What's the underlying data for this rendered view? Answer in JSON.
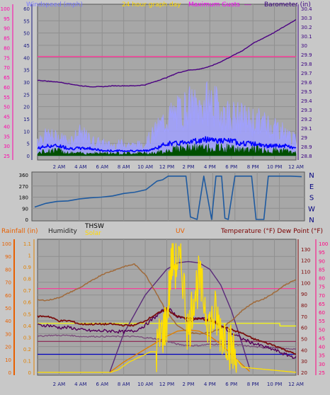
{
  "colors": {
    "background": "#c8c8c8",
    "plot_bg": "#a7a7a7",
    "grid": "#8f8f8f",
    "frame": "#555555"
  },
  "chart_data": [
    {
      "id": "top",
      "type": "line",
      "title": "24 hour graph day",
      "x_tick_labels": [
        "2 AM",
        "4 AM",
        "6 AM",
        "8 AM",
        "10 AM",
        "12 PM",
        "2 PM",
        "4 PM",
        "6 PM",
        "8 PM",
        "10 PM",
        "12 AM"
      ],
      "header_labels": [
        {
          "text": "Windspeed (mph)",
          "color": "#7b7bff"
        },
        {
          "text": "24 hour graph day",
          "color": "#ffd800"
        },
        {
          "text": "Maximum Gusts",
          "color": "#ff00ff"
        },
        {
          "text": "---",
          "color": "#ff00ff"
        },
        {
          "text": "Barometer (in)",
          "color": "#3a0080"
        }
      ],
      "left_axis": {
        "label": "Windspeed (mph)",
        "ticks": [
          "0",
          "5",
          "10",
          "15",
          "20",
          "25",
          "30",
          "35",
          "40",
          "45",
          "50",
          "55",
          "60"
        ],
        "color": "#1a1a80"
      },
      "outer_left_axis": {
        "ticks": [
          "25",
          "30",
          "35",
          "40",
          "45",
          "50",
          "55",
          "60",
          "65",
          "70",
          "75",
          "80",
          "85",
          "90",
          "95",
          "100"
        ],
        "color": "#ff00aa"
      },
      "right_axis": {
        "label": "Barometer (in)",
        "ticks": [
          "28.8",
          "28.9",
          "29",
          "29.1",
          "29.2",
          "29.3",
          "29.4",
          "29.5",
          "29.6",
          "29.7",
          "29.8",
          "29.9",
          "30",
          "30.1",
          "30.2",
          "30.3",
          "30.4"
        ],
        "color": "#3a0080"
      },
      "series": [
        {
          "name": "Barometer (in)",
          "color": "#4b0082",
          "axis": "right",
          "x": [
            0,
            1,
            2,
            3,
            4,
            5,
            6,
            7,
            8,
            9,
            10,
            11,
            12,
            13,
            14,
            15,
            16,
            17,
            18,
            19,
            20,
            21,
            22,
            23,
            24
          ],
          "values": [
            29.62,
            29.61,
            29.6,
            29.58,
            29.56,
            29.55,
            29.55,
            29.56,
            29.56,
            29.56,
            29.57,
            29.61,
            29.65,
            29.7,
            29.73,
            29.74,
            29.77,
            29.82,
            29.88,
            29.94,
            30.02,
            30.08,
            30.14,
            30.21,
            30.28
          ]
        },
        {
          "name": "Maximum Gusts",
          "color": "#ff3399",
          "axis": "outer_left",
          "x": [
            0,
            24
          ],
          "values": [
            75.5,
            75.5
          ]
        },
        {
          "name": "Wind gusts",
          "color": "#a0a0ff",
          "axis": "left",
          "x": [
            0,
            1,
            2,
            3,
            4,
            5,
            6,
            7,
            8,
            9,
            10,
            11,
            12,
            13,
            14,
            15,
            16,
            17,
            18,
            19,
            20,
            21,
            22,
            23,
            24
          ],
          "values": [
            7,
            8,
            7,
            6,
            9,
            6,
            5,
            4,
            5,
            4,
            5,
            10,
            15,
            17,
            20,
            19,
            22,
            18,
            16,
            15,
            14,
            13,
            12,
            9,
            6
          ]
        },
        {
          "name": "Wind average",
          "color": "#0000ff",
          "axis": "left",
          "x": [
            0,
            1,
            2,
            3,
            4,
            5,
            6,
            7,
            8,
            9,
            10,
            11,
            12,
            13,
            14,
            15,
            16,
            17,
            18,
            19,
            20,
            21,
            22,
            23,
            24
          ],
          "values": [
            3,
            4,
            4,
            3,
            3,
            3,
            2,
            2,
            2,
            2,
            2,
            3,
            5,
            5,
            6,
            6,
            7,
            6,
            6,
            5,
            5,
            4,
            4,
            4,
            3
          ]
        },
        {
          "name": "Wind speed",
          "color": "#005000",
          "axis": "left",
          "x": [
            0,
            1,
            2,
            3,
            4,
            5,
            6,
            7,
            8,
            9,
            10,
            11,
            12,
            13,
            14,
            15,
            16,
            17,
            18,
            19,
            20,
            21,
            22,
            23,
            24
          ],
          "values": [
            1,
            2,
            2,
            1,
            1,
            1,
            1,
            1,
            1,
            1,
            1,
            1,
            2,
            3,
            3,
            3,
            3,
            3,
            3,
            2,
            3,
            2,
            2,
            2,
            1
          ]
        }
      ]
    },
    {
      "id": "middle",
      "type": "line",
      "title": "",
      "right_axis": {
        "ticks": [
          "N",
          "W",
          "S",
          "E",
          "N"
        ],
        "color": "#00007f"
      },
      "left_axis": {
        "ticks": [
          "0",
          "90",
          "180",
          "270",
          "360"
        ],
        "color": "#000000"
      },
      "series": [
        {
          "name": "Wind direction",
          "color": "#1e5aa0",
          "x": [
            0,
            1,
            2,
            3,
            4,
            5,
            6,
            7,
            8,
            9,
            10,
            11,
            11.5,
            12,
            12.4,
            12.8,
            13.6,
            14,
            14.6,
            15.2,
            15.9,
            16.3,
            16.8,
            17.1,
            17.4,
            18,
            18.5,
            19.5,
            19.9,
            20.6,
            21,
            22,
            23,
            24
          ],
          "values": [
            100,
            130,
            145,
            150,
            165,
            175,
            180,
            190,
            210,
            220,
            240,
            310,
            320,
            350,
            350,
            350,
            350,
            20,
            0,
            350,
            0,
            350,
            350,
            10,
            0,
            350,
            350,
            350,
            0,
            0,
            350,
            350,
            350,
            345
          ]
        }
      ]
    },
    {
      "id": "bottom",
      "type": "line",
      "title": "",
      "header_labels": [
        {
          "text": "Rainfall (in)",
          "color": "#e86000"
        },
        {
          "text": "Humidity",
          "color": "#222222"
        },
        {
          "text": "THSW",
          "color": "#000000"
        },
        {
          "text": "Solar",
          "color": "#ffd800"
        },
        {
          "text": "UV",
          "color": "#e86000"
        },
        {
          "text": "Temperature (°F) Dew Point (°F)",
          "color": "#7a0000"
        }
      ],
      "x_tick_labels": [
        "2 AM",
        "4 AM",
        "6 AM",
        "8 AM",
        "10 AM",
        "12 PM",
        "2 PM",
        "4 PM",
        "6 PM",
        "8 PM",
        "10 PM",
        "12 AM"
      ],
      "rain_axis": {
        "label": "Rainfall (in)",
        "ticks": [
          "0",
          "10",
          "20",
          "30",
          "40",
          "50",
          "60",
          "70",
          "80",
          "90",
          "100"
        ],
        "color": "#e86000"
      },
      "humidity_axis": {
        "ticks": [
          "0",
          "0.1",
          "0.2",
          "0.3",
          "0.4",
          "0.5",
          "0.6",
          "0.7",
          "0.8",
          "0.9",
          "1",
          "1.1"
        ],
        "color": "#e08000"
      },
      "temp_axis": {
        "ticks": [
          "20",
          "30",
          "40",
          "50",
          "60",
          "70",
          "80",
          "90",
          "100",
          "110",
          "120",
          "130"
        ],
        "color": "#7a0000"
      },
      "dew_axis": {
        "ticks": [
          "25",
          "30",
          "35",
          "40",
          "45",
          "50",
          "55",
          "60",
          "65",
          "70",
          "75",
          "80",
          "85",
          "90",
          "95",
          "100"
        ],
        "color": "#ff0080"
      },
      "series": [
        {
          "name": "Humidity",
          "color": "#a06a3a",
          "x": [
            0,
            1,
            2,
            3,
            4,
            5,
            6,
            7,
            8,
            9,
            10,
            11,
            12,
            13,
            14,
            15,
            16,
            17,
            18,
            19,
            20,
            21,
            22,
            23,
            24
          ],
          "values": [
            56,
            56,
            58,
            62,
            66,
            71,
            76,
            79,
            82,
            84,
            76,
            62,
            47,
            36,
            31,
            30,
            31,
            34,
            40,
            48,
            54,
            57,
            62,
            68,
            72
          ]
        },
        {
          "name": "Temperature",
          "color": "#7a0f0f",
          "x": [
            0,
            1,
            2,
            3,
            4,
            5,
            6,
            7,
            8,
            9,
            10,
            11,
            12,
            13,
            14,
            15,
            16,
            17,
            18,
            19,
            20,
            21,
            22,
            23,
            24
          ],
          "values": [
            70,
            70,
            66,
            66,
            63,
            63,
            63,
            63,
            62,
            62,
            66,
            72,
            76,
            70,
            68,
            68,
            66,
            62,
            58,
            55,
            50,
            47,
            44,
            40,
            36
          ]
        },
        {
          "name": "THSW",
          "color": "#55005a",
          "x": [
            0,
            1,
            2,
            3,
            4,
            5,
            6,
            7,
            8,
            9,
            10,
            11,
            12,
            13,
            14,
            15,
            16,
            17,
            18,
            19,
            20,
            21,
            22,
            23,
            24
          ],
          "values": [
            62,
            62,
            60,
            60,
            58,
            57,
            57,
            57,
            56,
            57,
            62,
            70,
            78,
            70,
            66,
            68,
            68,
            62,
            55,
            50,
            46,
            43,
            40,
            36,
            33
          ]
        },
        {
          "name": "Dew Point",
          "color": "#7a4b7a",
          "x": [
            0,
            1,
            2,
            3,
            4,
            5,
            6,
            7,
            8,
            9,
            10,
            11,
            12,
            13,
            14,
            15,
            16,
            17,
            18,
            19,
            20,
            21,
            22,
            23,
            24
          ],
          "values": [
            52,
            53,
            53,
            53,
            52,
            52,
            52,
            52,
            52,
            52,
            51,
            50,
            48,
            45,
            44,
            44,
            45,
            45,
            45,
            44,
            43,
            42,
            42,
            41,
            41
          ]
        },
        {
          "name": "Solar",
          "color": "#ffe000",
          "x": [
            0,
            6.8,
            7.5,
            8,
            8.5,
            9,
            9.5,
            10,
            10.5,
            11,
            11.5,
            11.8,
            12,
            12.2,
            12.5,
            12.8,
            13,
            13.5,
            14,
            14.5,
            15,
            15.5,
            16,
            16.5,
            17,
            17.5,
            18,
            18.5,
            19,
            24
          ],
          "values": [
            0,
            0,
            2,
            5,
            8,
            10,
            12,
            14,
            16,
            16,
            30,
            35,
            40,
            62,
            90,
            82,
            88,
            75,
            28,
            60,
            72,
            55,
            35,
            45,
            32,
            30,
            18,
            10,
            4,
            0
          ]
        },
        {
          "name": "Solar max",
          "color": "#5a2a7a",
          "x": [
            6.7,
            8,
            10,
            12,
            13,
            14,
            15,
            16,
            17,
            18,
            19,
            19.8
          ],
          "values": [
            0,
            30,
            60,
            80,
            85,
            86,
            85,
            80,
            68,
            48,
            22,
            0
          ]
        },
        {
          "name": "UV",
          "color": "#e08000",
          "x": [
            6.7,
            8,
            10,
            12,
            13,
            14,
            15,
            16,
            17,
            18,
            19,
            19.8
          ],
          "values": [
            0,
            8,
            18,
            28,
            32,
            33,
            32,
            28,
            22,
            14,
            6,
            0
          ]
        },
        {
          "name": "Temperature max",
          "color": "#ffff00",
          "axis": "rain",
          "x": [
            0,
            22.5,
            22.5,
            24
          ],
          "values": [
            38,
            38,
            36,
            36
          ]
        },
        {
          "name": "Dew max",
          "color": "#ff3399",
          "axis": "rain",
          "x": [
            0,
            24
          ],
          "values": [
            65,
            65
          ]
        },
        {
          "name": "Rain ref",
          "color": "#0000c0",
          "axis": "rain",
          "x": [
            0,
            24
          ],
          "values": [
            14,
            14
          ]
        },
        {
          "name": "Temp ref",
          "color": "#8a2050",
          "axis": "rain",
          "x": [
            0,
            24
          ],
          "values": [
            24,
            24
          ]
        }
      ]
    }
  ]
}
